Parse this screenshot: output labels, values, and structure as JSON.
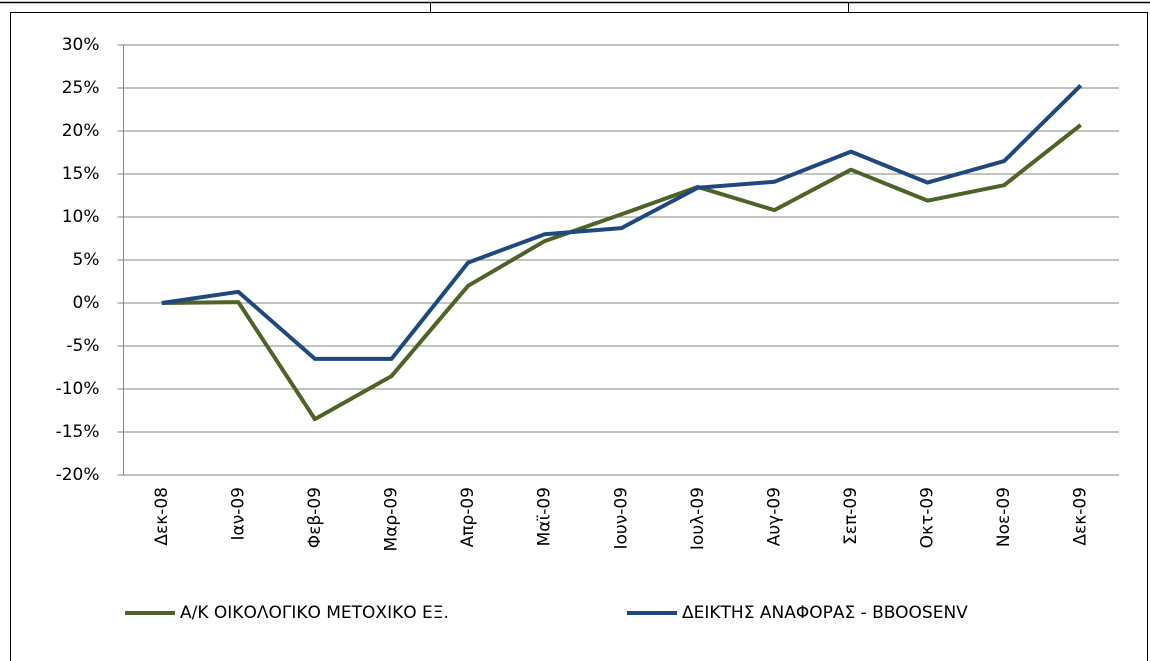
{
  "chart_data": {
    "type": "line",
    "categories": [
      "Δεκ-08",
      "Ιαν-09",
      "Φεβ-09",
      "Μαρ-09",
      "Απρ-09",
      "Μαϊ-09",
      "Ιουν-09",
      "Ιουλ-09",
      "Αυγ-09",
      "Σεπ-09",
      "Οκτ-09",
      "Νοε-09",
      "Δεκ-09"
    ],
    "series": [
      {
        "name": "Α/Κ ΟΙΚΟΛΟΓΙΚΟ ΜΕΤΟΧΙΚΟ ΕΞ.",
        "color": "#4f6228",
        "values": [
          0,
          0.1,
          -13.5,
          -8.5,
          2,
          7.2,
          10.3,
          13.5,
          10.8,
          15.5,
          11.9,
          13.7,
          20.7
        ]
      },
      {
        "name": "ΔΕΙΚΤΗΣ ΑΝΑΦΟΡΑΣ - BBOOSENV",
        "color": "#1f497d",
        "values": [
          0,
          1.3,
          -6.5,
          -6.5,
          4.7,
          8,
          8.7,
          13.4,
          14.1,
          17.6,
          14,
          16.5,
          25.3
        ]
      }
    ],
    "ylim": [
      -20,
      30
    ],
    "yticks": [
      {
        "value": -20,
        "label": "-20%"
      },
      {
        "value": -15,
        "label": "-15%"
      },
      {
        "value": -10,
        "label": "-10%"
      },
      {
        "value": -5,
        "label": "-5%"
      },
      {
        "value": 0,
        "label": "0%"
      },
      {
        "value": 5,
        "label": "5%"
      },
      {
        "value": 10,
        "label": "10%"
      },
      {
        "value": 15,
        "label": "15%"
      },
      {
        "value": 20,
        "label": "20%"
      },
      {
        "value": 25,
        "label": "25%"
      },
      {
        "value": 30,
        "label": "30%"
      }
    ],
    "grid": true,
    "legend": "bottom"
  }
}
